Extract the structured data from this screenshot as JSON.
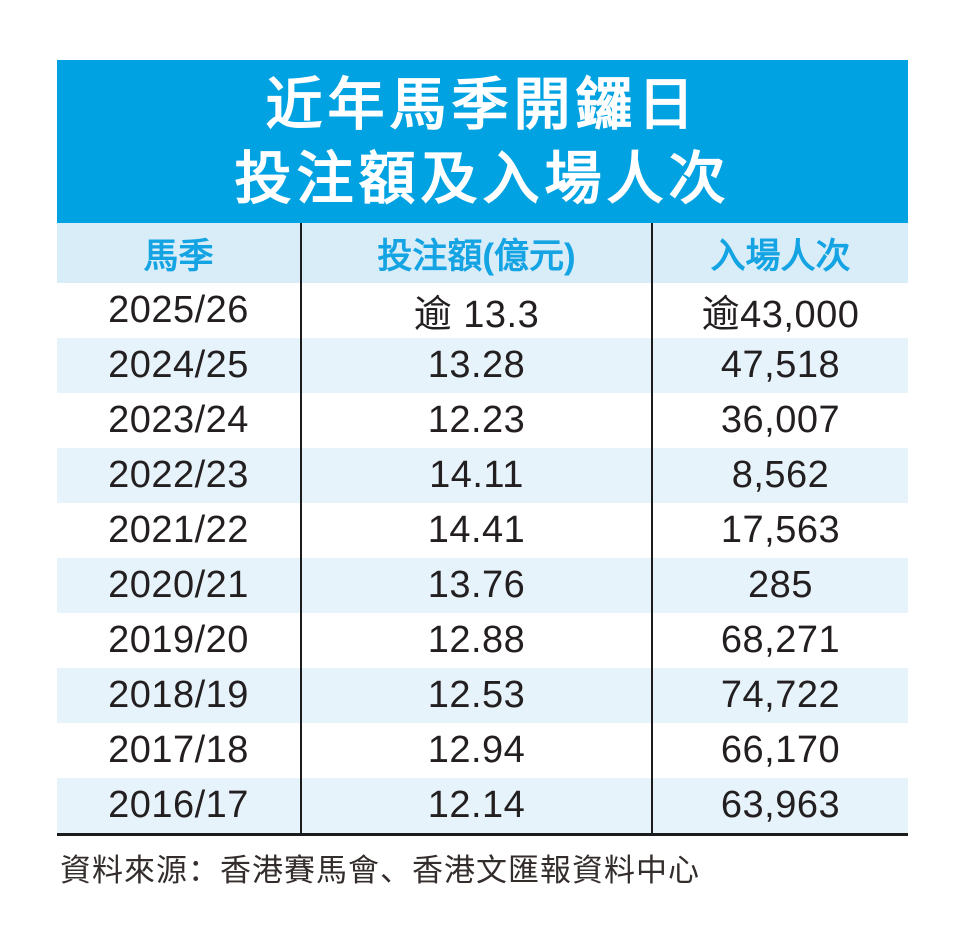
{
  "title": {
    "line1": "近年馬季開鑼日",
    "line2": "投注額及入場人次"
  },
  "table": {
    "headers": {
      "season": "馬季",
      "turnover": "投注額(億元)",
      "attendance": "入場人次"
    },
    "rows": [
      {
        "season": "2025/26",
        "turnover": "逾 13.3",
        "attendance": "逾43,000"
      },
      {
        "season": "2024/25",
        "turnover": "13.28",
        "attendance": "47,518"
      },
      {
        "season": "2023/24",
        "turnover": "12.23",
        "attendance": "36,007"
      },
      {
        "season": "2022/23",
        "turnover": "14.11",
        "attendance": "8,562"
      },
      {
        "season": "2021/22",
        "turnover": "14.41",
        "attendance": "17,563"
      },
      {
        "season": "2020/21",
        "turnover": "13.76",
        "attendance": "285"
      },
      {
        "season": "2019/20",
        "turnover": "12.88",
        "attendance": "68,271"
      },
      {
        "season": "2018/19",
        "turnover": "12.53",
        "attendance": "74,722"
      },
      {
        "season": "2017/18",
        "turnover": "12.94",
        "attendance": "66,170"
      },
      {
        "season": "2016/17",
        "turnover": "12.14",
        "attendance": "63,963"
      }
    ]
  },
  "source_note": "資料來源：香港賽馬會、香港文匯報資料中心",
  "colors": {
    "banner_blue": "#00a2e1",
    "header_text_blue": "#14a4e3",
    "header_row_bg": "#d9edf9",
    "alt_row_bg": "#e7f3fb",
    "text_dark": "#231f20",
    "rule_black": "#1c1c1c"
  },
  "chart_data": {
    "type": "table",
    "title": "近年馬季開鑼日投注額及入場人次",
    "columns": [
      "馬季",
      "投注額(億元)",
      "入場人次"
    ],
    "categories": [
      "2025/26",
      "2024/25",
      "2023/24",
      "2022/23",
      "2021/22",
      "2020/21",
      "2019/20",
      "2018/19",
      "2017/18",
      "2016/17"
    ],
    "series": [
      {
        "name": "投注額(億元)",
        "values": [
          13.3,
          13.28,
          12.23,
          14.11,
          14.41,
          13.76,
          12.88,
          12.53,
          12.94,
          12.14
        ],
        "notes": [
          "逾(over) for 2025/26",
          null,
          null,
          null,
          null,
          null,
          null,
          null,
          null,
          null
        ]
      },
      {
        "name": "入場人次",
        "values": [
          43000,
          47518,
          36007,
          8562,
          17563,
          285,
          68271,
          74722,
          66170,
          63963
        ],
        "notes": [
          "逾(over) for 2025/26",
          null,
          null,
          null,
          null,
          null,
          null,
          null,
          null,
          null
        ]
      }
    ],
    "source": "資料來源：香港賽馬會、香港文匯報資料中心",
    "layout": {
      "alternating_rows": true,
      "column_rules": true,
      "title_banner": true
    }
  }
}
